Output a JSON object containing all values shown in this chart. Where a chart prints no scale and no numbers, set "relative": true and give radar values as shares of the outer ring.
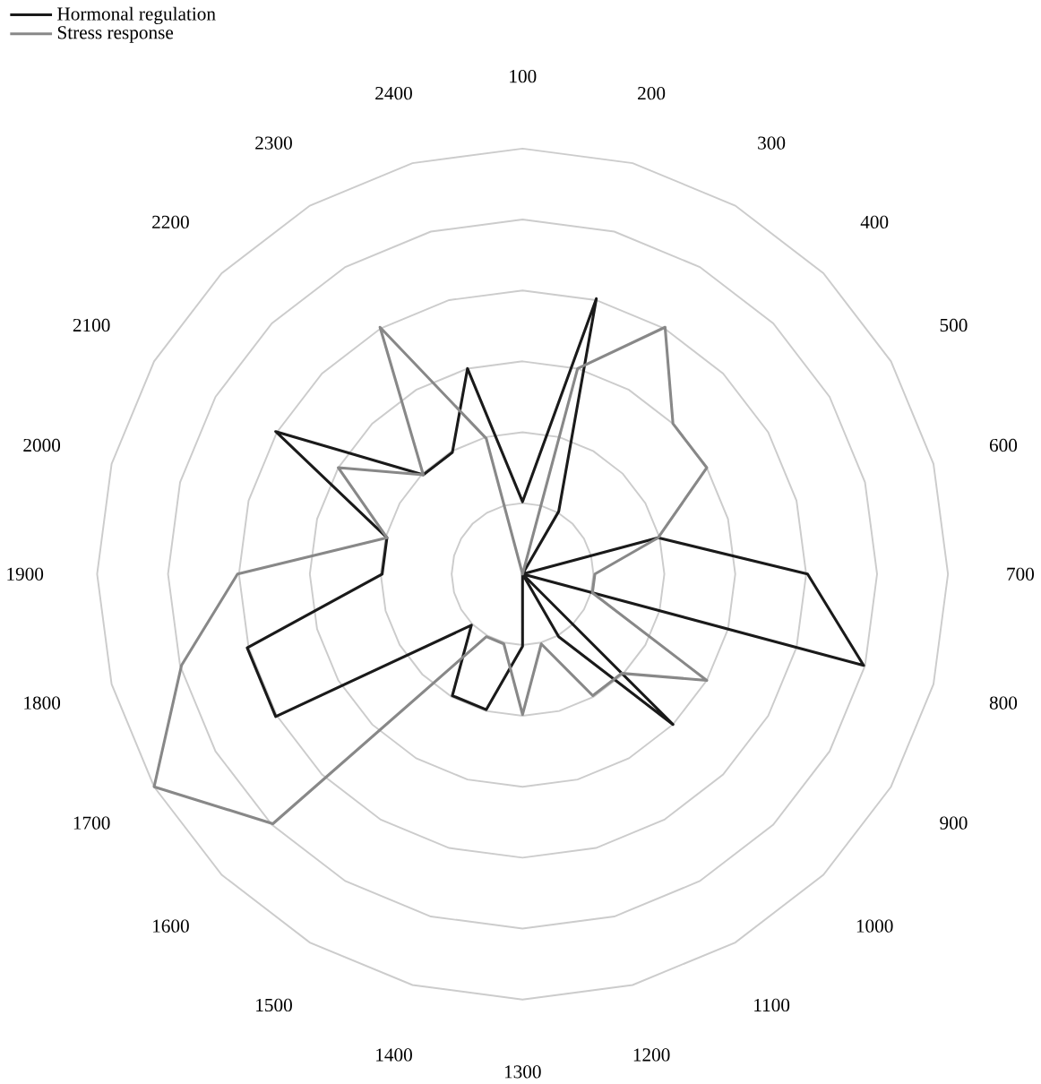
{
  "chart_data": {
    "type": "radar",
    "relative": true,
    "grid": true,
    "legend": "top left",
    "categories": [
      "100",
      "200",
      "300",
      "400",
      "500",
      "600",
      "700",
      "800",
      "900",
      "1000",
      "1100",
      "1200",
      "1300",
      "1400",
      "1500",
      "1600",
      "1700",
      "1800",
      "1900",
      "2000",
      "2100",
      "2200",
      "2300",
      "2400"
    ],
    "series": [
      {
        "name": "Hormonal regulation",
        "color": "#1a1a1a",
        "values": [
          0.17,
          0.67,
          0.17,
          0,
          0,
          0.33,
          0.67,
          0.83,
          0,
          0.5,
          0.17,
          0,
          0.17,
          0.33,
          0.33,
          0.17,
          0.67,
          0.67,
          0.33,
          0.33,
          0.67,
          0.33,
          0.33,
          0.5
        ]
      },
      {
        "name": "Stress response",
        "color": "#888888",
        "values": [
          0,
          0.5,
          0.67,
          0.5,
          0.5,
          0.33,
          0.17,
          0.17,
          0.5,
          0.33,
          0.33,
          0.17,
          0.33,
          0.17,
          0.17,
          0.83,
          1.0,
          0.83,
          0.67,
          0.33,
          0.5,
          0.33,
          0.67,
          0.33
        ]
      }
    ]
  }
}
